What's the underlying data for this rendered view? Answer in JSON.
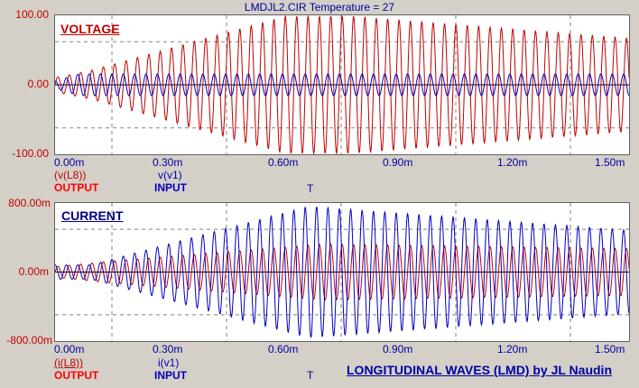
{
  "header": {
    "title": "LMDJL2.CIR Temperature = 27"
  },
  "colors": {
    "output": "#c00000",
    "input": "#0000c0",
    "grid": "#808080",
    "background": "#d4d0c8"
  },
  "x_ticks": [
    "0.00m",
    "0.30m",
    "0.60m",
    "0.90m",
    "1.20m",
    "1.50m"
  ],
  "x_axis_label": "T",
  "voltage_plot": {
    "title": "VOLTAGE",
    "y_ticks": [
      "100.00",
      "0.00",
      "-100.00"
    ],
    "traces": [
      {
        "expr": "(v(L8))",
        "name": "OUTPUT"
      },
      {
        "expr": "v(v1)",
        "name": "INPUT"
      }
    ]
  },
  "current_plot": {
    "title": "CURRENT",
    "y_ticks": [
      "800.00m",
      "0.00m",
      "-800.00m"
    ],
    "traces": [
      {
        "expr": "(i(L8))",
        "name": "OUTPUT"
      },
      {
        "expr": "i(v1)",
        "name": "INPUT"
      }
    ]
  },
  "footer": {
    "credit": "LONGITUDINAL WAVES (LMD) by JL Naudin"
  }
}
